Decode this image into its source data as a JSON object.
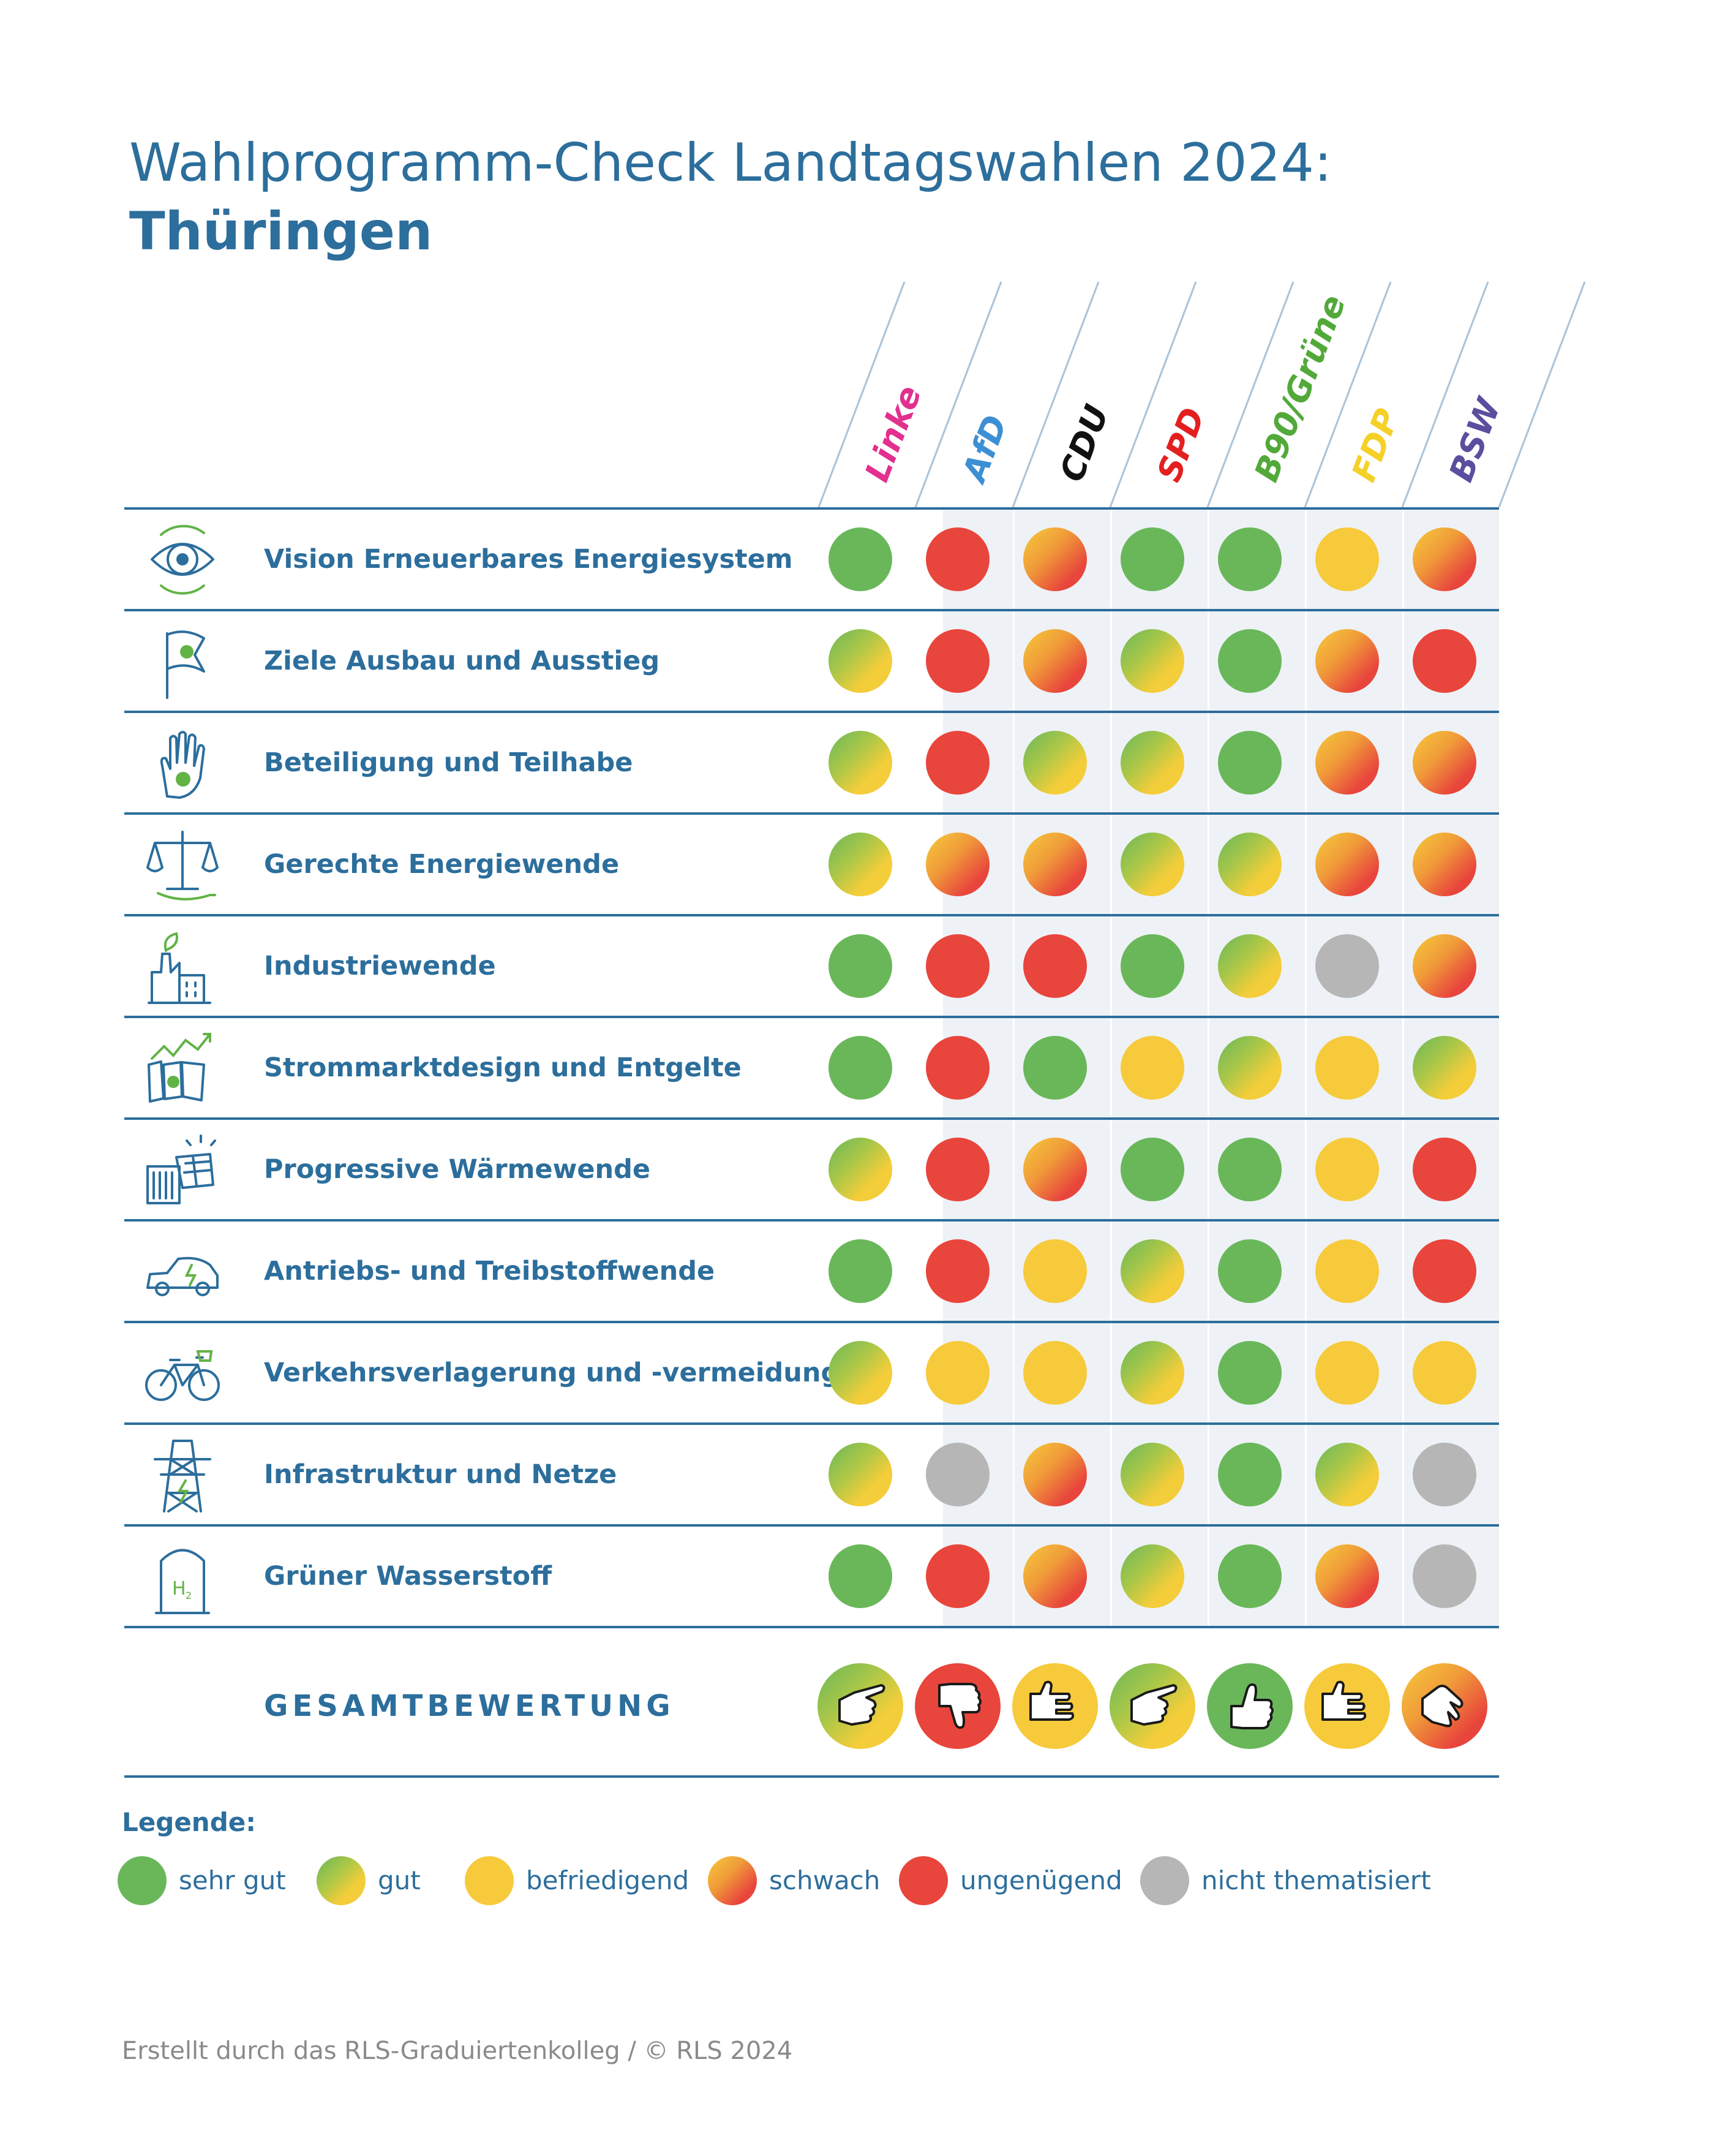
{
  "title": {
    "line1": "Wahlprogramm-Check Landtagswahlen 2024:",
    "line2": "Thüringen"
  },
  "parties": [
    {
      "name": "Linke",
      "color": "#e2308f"
    },
    {
      "name": "AfD",
      "color": "#3d8fd4"
    },
    {
      "name": "CDU",
      "color": "#111111"
    },
    {
      "name": "SPD",
      "color": "#e3201f"
    },
    {
      "name": "B90/Grüne",
      "color": "#52a93a"
    },
    {
      "name": "FDP",
      "color": "#f5d027"
    },
    {
      "name": "BSW",
      "color": "#5a4f9e"
    }
  ],
  "rating_colors": {
    "sehr gut": "#6ab75a",
    "befriedigend": "#f6ca3b",
    "ungenügend": "#e8453c",
    "nicht thematisiert": "#b6b6b6",
    "text": "#2c6e9c"
  },
  "topics": [
    {
      "label": "Vision Erneuerbares Energiesystem",
      "icon": "eye-cycle-icon",
      "ratings": [
        "sehr gut",
        "ungenügend",
        "schwach",
        "sehr gut",
        "sehr gut",
        "befriedigend",
        "schwach"
      ]
    },
    {
      "label": "Ziele Ausbau und Ausstieg",
      "icon": "flag-plug-icon",
      "ratings": [
        "gut",
        "ungenügend",
        "schwach",
        "gut",
        "sehr gut",
        "schwach",
        "ungenügend"
      ]
    },
    {
      "label": "Beteiligung und Teilhabe",
      "icon": "raised-hand-icon",
      "ratings": [
        "gut",
        "ungenügend",
        "gut",
        "gut",
        "sehr gut",
        "schwach",
        "schwach"
      ]
    },
    {
      "label": "Gerechte Energiewende",
      "icon": "scales-icon",
      "ratings": [
        "gut",
        "schwach",
        "schwach",
        "gut",
        "gut",
        "schwach",
        "schwach"
      ]
    },
    {
      "label": "Industriewende",
      "icon": "factory-icon",
      "ratings": [
        "sehr gut",
        "ungenügend",
        "ungenügend",
        "sehr gut",
        "gut",
        "nicht thematisiert",
        "schwach"
      ]
    },
    {
      "label": "Strommarktdesign und Entgelte",
      "icon": "market-chart-icon",
      "ratings": [
        "sehr gut",
        "ungenügend",
        "sehr gut",
        "befriedigend",
        "gut",
        "befriedigend",
        "gut"
      ]
    },
    {
      "label": "Progressive Wärmewende",
      "icon": "heater-solar-icon",
      "ratings": [
        "gut",
        "ungenügend",
        "schwach",
        "sehr gut",
        "sehr gut",
        "befriedigend",
        "ungenügend"
      ]
    },
    {
      "label": "Antriebs- und Treibstoffwende",
      "icon": "electric-car-icon",
      "ratings": [
        "sehr gut",
        "ungenügend",
        "befriedigend",
        "gut",
        "sehr gut",
        "befriedigend",
        "ungenügend"
      ]
    },
    {
      "label": "Verkehrsverlagerung und -vermeidung",
      "icon": "bicycle-icon",
      "ratings": [
        "gut",
        "befriedigend",
        "befriedigend",
        "gut",
        "sehr gut",
        "befriedigend",
        "befriedigend"
      ]
    },
    {
      "label": "Infrastruktur und Netze",
      "icon": "power-pylon-icon",
      "ratings": [
        "gut",
        "nicht thematisiert",
        "schwach",
        "gut",
        "sehr gut",
        "gut",
        "nicht thematisiert"
      ]
    },
    {
      "label": "Grüner Wasserstoff",
      "icon": "hydrogen-tank-icon",
      "ratings": [
        "sehr gut",
        "ungenügend",
        "schwach",
        "gut",
        "sehr gut",
        "schwach",
        "nicht thematisiert"
      ]
    }
  ],
  "overall": {
    "label": "GESAMTBEWERTUNG",
    "items": [
      {
        "rating": "gut",
        "icon": "pointing-hand-icon"
      },
      {
        "rating": "ungenügend",
        "icon": "thumbs-down-icon"
      },
      {
        "rating": "befriedigend",
        "icon": "sideways-hand-icon"
      },
      {
        "rating": "gut",
        "icon": "pointing-hand-icon"
      },
      {
        "rating": "sehr gut",
        "icon": "thumbs-up-icon"
      },
      {
        "rating": "befriedigend",
        "icon": "sideways-hand-icon"
      },
      {
        "rating": "schwach",
        "icon": "tilted-hand-icon"
      }
    ]
  },
  "legend": {
    "title": "Legende:",
    "items": [
      {
        "rating": "sehr gut",
        "label": "sehr gut"
      },
      {
        "rating": "gut",
        "label": "gut"
      },
      {
        "rating": "befriedigend",
        "label": "befriedigend"
      },
      {
        "rating": "schwach",
        "label": "schwach"
      },
      {
        "rating": "ungenügend",
        "label": "ungenügend"
      },
      {
        "rating": "nicht thematisiert",
        "label": "nicht thematisiert"
      }
    ]
  },
  "footer": "Erstellt durch das RLS-Graduiertenkolleg / © RLS 2024"
}
